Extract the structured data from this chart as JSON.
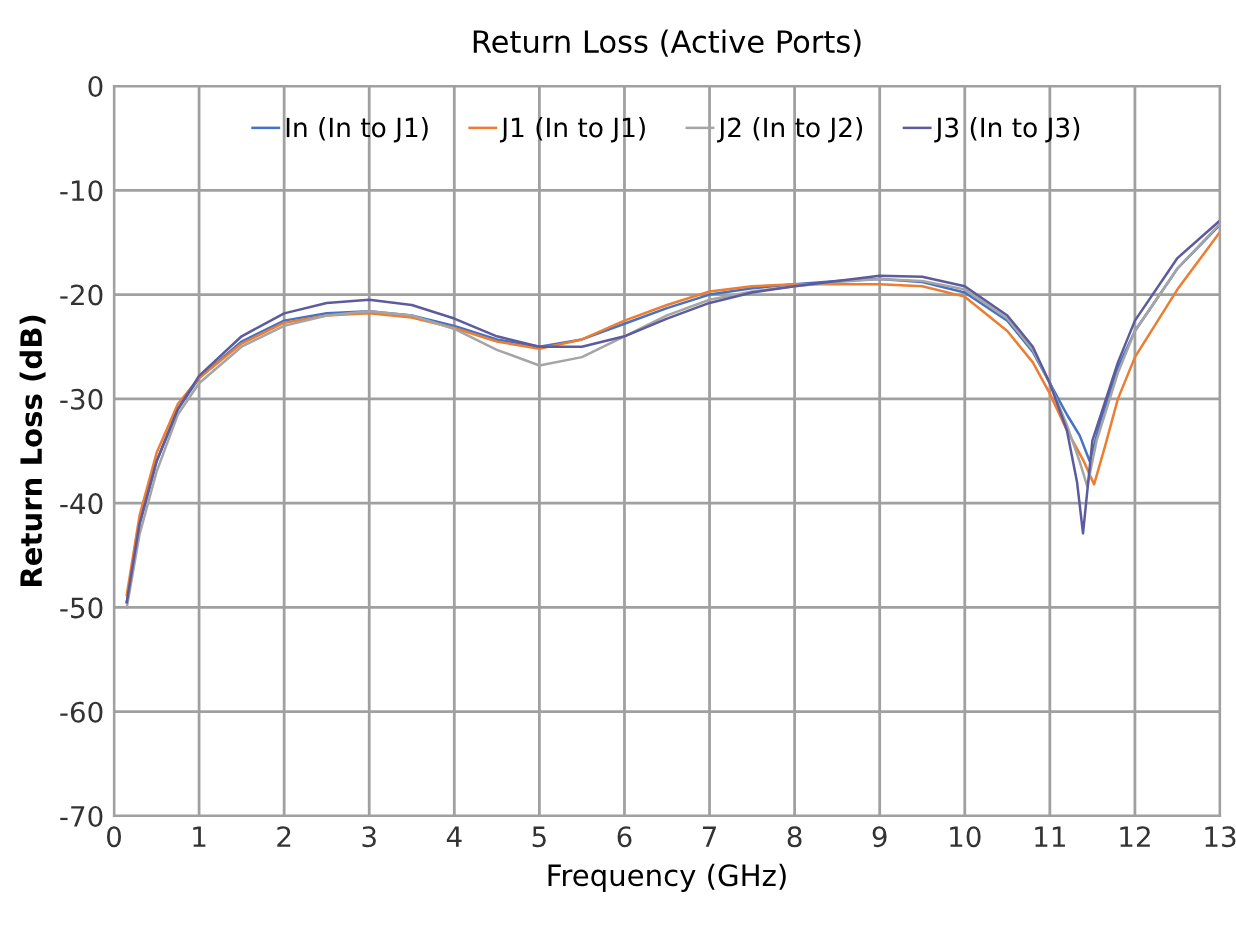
{
  "chart_data": {
    "type": "line",
    "title": "Return Loss (Active Ports)",
    "xlabel": "Frequency (GHz)",
    "ylabel": "Return Loss (dB)",
    "xlim": [
      0,
      13
    ],
    "xticks": [
      0,
      1,
      2,
      3,
      4,
      5,
      6,
      7,
      8,
      9,
      10,
      11,
      12,
      13
    ],
    "ylim": [
      -70,
      0
    ],
    "yticks": [
      -70,
      -60,
      -50,
      -40,
      -30,
      -20,
      -10,
      0
    ],
    "grid": true,
    "legend": "top",
    "marker": "none",
    "line_style": "solid",
    "series": [
      {
        "name": "In (In to J1)",
        "color": "#4472c4",
        "x": [
          0.15,
          0.3,
          0.5,
          0.75,
          1,
          1.5,
          2,
          2.5,
          3,
          3.5,
          4,
          4.5,
          5,
          5.5,
          6,
          6.5,
          7,
          7.5,
          8,
          8.5,
          9,
          9.5,
          10,
          10.5,
          10.8,
          11,
          11.2,
          11.35,
          11.47,
          11.6,
          11.8,
          12,
          12.5,
          13
        ],
        "values": [
          -49.5,
          -42,
          -36,
          -31,
          -28,
          -24.5,
          -22.5,
          -21.8,
          -21.6,
          -22,
          -23,
          -24.3,
          -25,
          -24.3,
          -22.8,
          -21.3,
          -20,
          -19.4,
          -19,
          -18.7,
          -18.5,
          -18.8,
          -19.8,
          -22.5,
          -25.5,
          -28.5,
          -31.5,
          -33.5,
          -36,
          -32,
          -27,
          -23.5,
          -17.5,
          -13.3
        ]
      },
      {
        "name": "J1 (In to J1)",
        "color": "#ed7d31",
        "x": [
          0.15,
          0.3,
          0.5,
          0.75,
          1,
          1.5,
          2,
          2.5,
          3,
          3.5,
          4,
          4.5,
          5,
          5.5,
          6,
          6.5,
          7,
          7.5,
          8,
          8.5,
          9,
          9.5,
          10,
          10.5,
          10.8,
          11,
          11.2,
          11.4,
          11.52,
          11.65,
          11.8,
          12,
          12.5,
          13
        ],
        "values": [
          -48.8,
          -41.2,
          -35.2,
          -30.5,
          -28,
          -24.7,
          -22.7,
          -22,
          -21.8,
          -22.2,
          -23.2,
          -24.5,
          -25.2,
          -24.3,
          -22.5,
          -21,
          -19.7,
          -19.2,
          -19,
          -19,
          -19,
          -19.2,
          -20.2,
          -23.5,
          -26.5,
          -29.5,
          -33,
          -36,
          -38.2,
          -34.5,
          -30,
          -26,
          -19.5,
          -14
        ]
      },
      {
        "name": "J2 (In to J2)",
        "color": "#a5a5a5",
        "x": [
          0.15,
          0.3,
          0.5,
          0.75,
          1,
          1.5,
          2,
          2.5,
          3,
          3.5,
          4,
          4.5,
          5,
          5.5,
          6,
          6.5,
          7,
          7.5,
          8,
          8.5,
          9,
          9.5,
          10,
          10.5,
          10.8,
          11,
          11.2,
          11.35,
          11.44,
          11.55,
          11.8,
          12,
          12.5,
          13
        ],
        "values": [
          -50,
          -43,
          -37,
          -31.5,
          -28.5,
          -25,
          -23,
          -22,
          -21.6,
          -22,
          -23.3,
          -25.3,
          -26.8,
          -26,
          -24,
          -22,
          -20.5,
          -19.7,
          -19.2,
          -18.8,
          -18.5,
          -18.7,
          -19.5,
          -22.3,
          -25.3,
          -28.5,
          -32.5,
          -36,
          -38.4,
          -34,
          -27.5,
          -23.5,
          -17.5,
          -13.2
        ]
      },
      {
        "name": "J3 (In to J3)",
        "color": "#5b5b9e",
        "x": [
          0.15,
          0.3,
          0.5,
          0.75,
          1,
          1.5,
          2,
          2.5,
          3,
          3.5,
          4,
          4.5,
          5,
          5.5,
          6,
          6.5,
          7,
          7.5,
          8,
          8.5,
          9,
          9.5,
          10,
          10.5,
          10.8,
          11,
          11.2,
          11.32,
          11.39,
          11.5,
          11.8,
          12,
          12.5,
          13
        ],
        "values": [
          -49.5,
          -42,
          -36,
          -31,
          -27.8,
          -24,
          -21.8,
          -20.8,
          -20.5,
          -21,
          -22.3,
          -24,
          -25,
          -25,
          -24,
          -22.3,
          -20.8,
          -19.8,
          -19.2,
          -18.7,
          -18.2,
          -18.3,
          -19.2,
          -22,
          -25,
          -28.5,
          -33,
          -38,
          -42.9,
          -34,
          -26.5,
          -22.5,
          -16.5,
          -12.9
        ]
      }
    ]
  }
}
